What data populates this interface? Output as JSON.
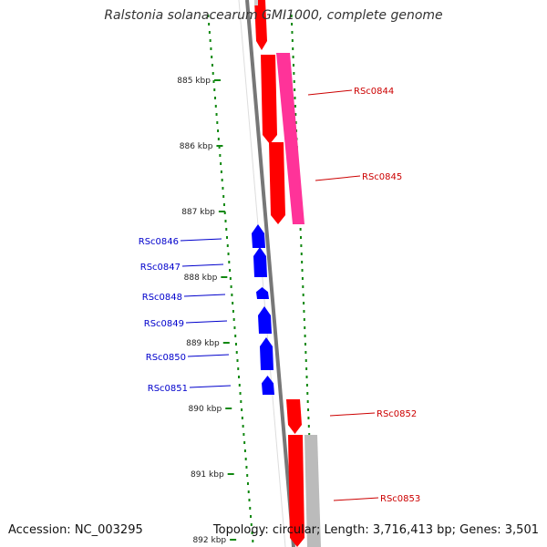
{
  "title": "Ralstonia solanacearum GMI1000, complete genome",
  "footer": {
    "accession": "Accession: NC_003295",
    "summary": "Topology: circular; Length: 3,716,413 bp; Genes: 3,501"
  },
  "colors": {
    "forward_gene": "#ff0000",
    "reverse_gene": "#0000ff",
    "cds_feature": "#ff3399",
    "pseudo_feature": "#bbbbbb",
    "ticks": "#118811",
    "backbone": "#777777"
  },
  "ruler": {
    "unit": "kbp",
    "labels": [
      "885 kbp",
      "886 kbp",
      "887 kbp",
      "888 kbp",
      "889 kbp",
      "890 kbp",
      "891 kbp",
      "892 kbp"
    ]
  },
  "forward_genes": [
    {
      "label": "RSc0844"
    },
    {
      "label": "RSc0845"
    },
    {
      "label": "RSc0852"
    },
    {
      "label": "RSc0853"
    }
  ],
  "reverse_genes": [
    {
      "label": "RSc0846"
    },
    {
      "label": "RSc0847"
    },
    {
      "label": "RSc0848"
    },
    {
      "label": "RSc0849"
    },
    {
      "label": "RSc0850"
    },
    {
      "label": "RSc0851"
    }
  ]
}
